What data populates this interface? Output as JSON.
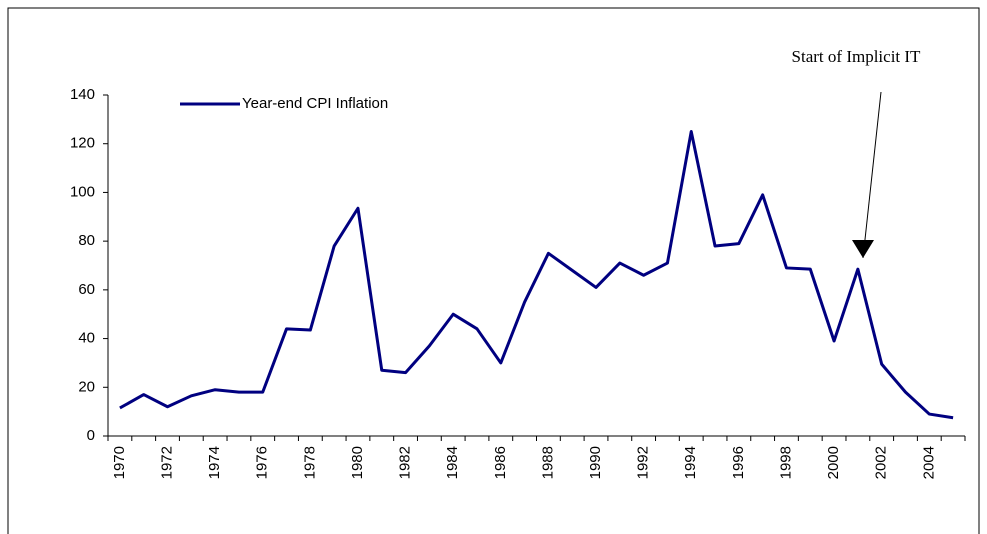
{
  "chart_data": {
    "type": "line",
    "categories": [
      "1970",
      null,
      "1972",
      null,
      "1974",
      null,
      "1976",
      null,
      "1978",
      null,
      "1980",
      null,
      "1982",
      null,
      "1984",
      null,
      "1986",
      null,
      "1988",
      null,
      "1990",
      null,
      "1992",
      null,
      "1994",
      null,
      "1996",
      null,
      "1998",
      null,
      "2000",
      null,
      "2002",
      null,
      "2004",
      null
    ],
    "series": [
      {
        "name": "Year-end CPI Inflation",
        "color": "#000080",
        "values": [
          11.5,
          17,
          12,
          16.5,
          19,
          18,
          18,
          44,
          43.5,
          78,
          93.5,
          27,
          26,
          37,
          50,
          44,
          30,
          55,
          75,
          68,
          61,
          71,
          66,
          71,
          125,
          78,
          79,
          99,
          69,
          68.5,
          39,
          68.5,
          29.5,
          18,
          9,
          7.5
        ]
      }
    ],
    "ylim": [
      0,
      140
    ],
    "yticks": [
      0,
      20,
      40,
      60,
      80,
      100,
      120,
      140
    ],
    "annotation": "Start of Implicit IT",
    "legend": "top-left"
  }
}
